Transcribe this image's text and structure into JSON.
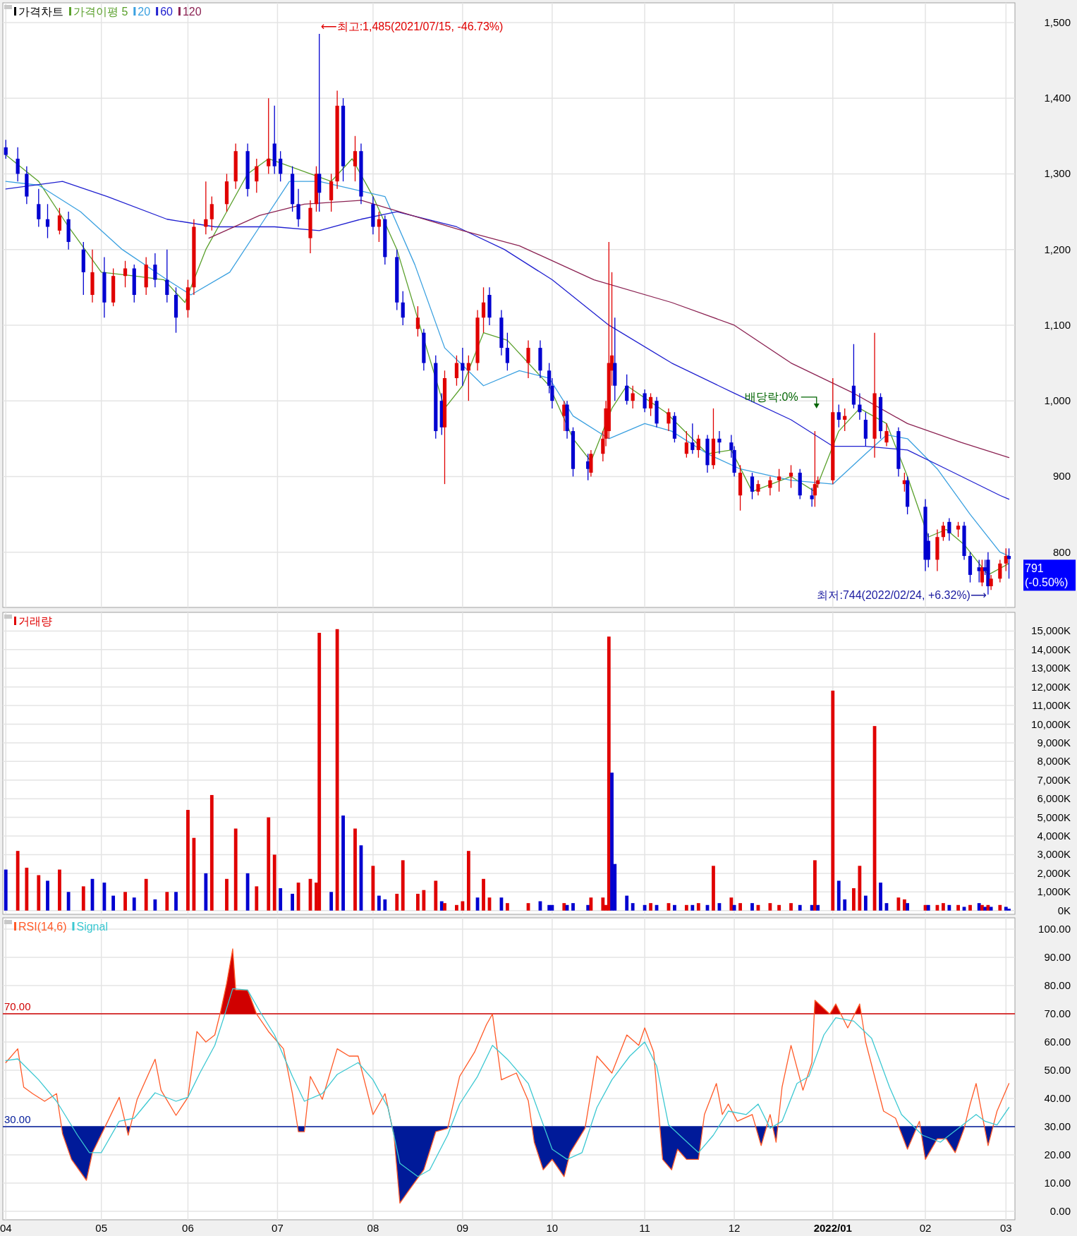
{
  "chart_data": [
    {
      "type": "candlestick",
      "title": "가격차트",
      "legend": "top left",
      "grid": true,
      "tick_labels": "y",
      "x": [
        "2021-04-01",
        "2021-04-05",
        "2021-04-08",
        "2021-04-12",
        "2021-04-15",
        "2021-04-19",
        "2021-04-22",
        "2021-04-27",
        "2021-04-30",
        "2021-05-04",
        "2021-05-07",
        "2021-05-11",
        "2021-05-14",
        "2021-05-18",
        "2021-05-21",
        "2021-05-25",
        "2021-05-28",
        "2021-06-01",
        "2021-06-03",
        "2021-06-07",
        "2021-06-09",
        "2021-06-14",
        "2021-06-17",
        "2021-06-21",
        "2021-06-24",
        "2021-06-28",
        "2021-06-30",
        "2021-07-02",
        "2021-07-06",
        "2021-07-08",
        "2021-07-12",
        "2021-07-14",
        "2021-07-15",
        "2021-07-19",
        "2021-07-21",
        "2021-07-23",
        "2021-07-27",
        "2021-07-29",
        "2021-08-02",
        "2021-08-04",
        "2021-08-06",
        "2021-08-10",
        "2021-08-12",
        "2021-08-17",
        "2021-08-19",
        "2021-08-23",
        "2021-08-25",
        "2021-08-26",
        "2021-08-30",
        "2021-09-01",
        "2021-09-03",
        "2021-09-06",
        "2021-09-08",
        "2021-09-10",
        "2021-09-14",
        "2021-09-16",
        "2021-09-23",
        "2021-09-27",
        "2021-09-30",
        "2021-10-01",
        "2021-10-05",
        "2021-10-06",
        "2021-10-08",
        "2021-10-13",
        "2021-10-14",
        "2021-10-18",
        "2021-10-19",
        "2021-10-20",
        "2021-10-21",
        "2021-10-22",
        "2021-10-26",
        "2021-10-28",
        "2021-11-01",
        "2021-11-03",
        "2021-11-05",
        "2021-11-09",
        "2021-11-11",
        "2021-11-15",
        "2021-11-17",
        "2021-11-19",
        "2021-11-22",
        "2021-11-24",
        "2021-11-26",
        "2021-11-30",
        "2021-12-01",
        "2021-12-03",
        "2021-12-07",
        "2021-12-09",
        "2021-12-13",
        "2021-12-16",
        "2021-12-20",
        "2021-12-23",
        "2021-12-27",
        "2021-12-28",
        "2021-12-29",
        "2022-01-03",
        "2022-01-05",
        "2022-01-07",
        "2022-01-10",
        "2022-01-12",
        "2022-01-14",
        "2022-01-17",
        "2022-01-19",
        "2022-01-21",
        "2022-01-25",
        "2022-01-27",
        "2022-01-28",
        "2022-02-03",
        "2022-02-04",
        "2022-02-07",
        "2022-02-09",
        "2022-02-11",
        "2022-02-14",
        "2022-02-16",
        "2022-02-18",
        "2022-02-21",
        "2022-02-22",
        "2022-02-23",
        "2022-02-24",
        "2022-02-25",
        "2022-02-28",
        "2022-03-02",
        "2022-03-03"
      ],
      "ohlc": [
        [
          1335,
          1345,
          1320,
          1325
        ],
        [
          1320,
          1335,
          1290,
          1300
        ],
        [
          1300,
          1310,
          1260,
          1270
        ],
        [
          1260,
          1280,
          1230,
          1240
        ],
        [
          1240,
          1260,
          1215,
          1230
        ],
        [
          1225,
          1255,
          1220,
          1245
        ],
        [
          1240,
          1250,
          1200,
          1210
        ],
        [
          1200,
          1210,
          1140,
          1170
        ],
        [
          1140,
          1200,
          1130,
          1170
        ],
        [
          1170,
          1190,
          1110,
          1130
        ],
        [
          1130,
          1175,
          1125,
          1165
        ],
        [
          1165,
          1185,
          1150,
          1175
        ],
        [
          1175,
          1180,
          1130,
          1140
        ],
        [
          1150,
          1190,
          1140,
          1180
        ],
        [
          1180,
          1195,
          1150,
          1160
        ],
        [
          1160,
          1200,
          1130,
          1140
        ],
        [
          1140,
          1150,
          1090,
          1110
        ],
        [
          1120,
          1160,
          1110,
          1150
        ],
        [
          1150,
          1240,
          1140,
          1230
        ],
        [
          1230,
          1290,
          1220,
          1240
        ],
        [
          1240,
          1270,
          1225,
          1260
        ],
        [
          1260,
          1300,
          1250,
          1290
        ],
        [
          1290,
          1340,
          1280,
          1330
        ],
        [
          1330,
          1340,
          1270,
          1280
        ],
        [
          1290,
          1320,
          1275,
          1310
        ],
        [
          1310,
          1400,
          1300,
          1320
        ],
        [
          1340,
          1390,
          1300,
          1310
        ],
        [
          1320,
          1330,
          1290,
          1300
        ],
        [
          1300,
          1310,
          1250,
          1260
        ],
        [
          1260,
          1280,
          1230,
          1240
        ],
        [
          1215,
          1265,
          1195,
          1255
        ],
        [
          1260,
          1310,
          1250,
          1300
        ],
        [
          1300,
          1485,
          1250,
          1275
        ],
        [
          1265,
          1300,
          1250,
          1290
        ],
        [
          1290,
          1410,
          1280,
          1390
        ],
        [
          1390,
          1400,
          1290,
          1310
        ],
        [
          1310,
          1350,
          1290,
          1330
        ],
        [
          1330,
          1340,
          1260,
          1270
        ],
        [
          1260,
          1270,
          1220,
          1230
        ],
        [
          1230,
          1250,
          1210,
          1240
        ],
        [
          1240,
          1245,
          1180,
          1190
        ],
        [
          1190,
          1200,
          1120,
          1130
        ],
        [
          1130,
          1145,
          1100,
          1110
        ],
        [
          1095,
          1125,
          1085,
          1110
        ],
        [
          1090,
          1095,
          1040,
          1050
        ],
        [
          1050,
          1060,
          950,
          960
        ],
        [
          1000,
          1010,
          955,
          965
        ],
        [
          965,
          1040,
          890,
          1030
        ],
        [
          1030,
          1060,
          1020,
          1050
        ],
        [
          1050,
          1070,
          1020,
          1040
        ],
        [
          1040,
          1060,
          1000,
          1050
        ],
        [
          1050,
          1120,
          1040,
          1110
        ],
        [
          1110,
          1150,
          1090,
          1130
        ],
        [
          1140,
          1150,
          1100,
          1110
        ],
        [
          1110,
          1120,
          1060,
          1070
        ],
        [
          1070,
          1090,
          1040,
          1050
        ],
        [
          1050,
          1080,
          1030,
          1070
        ],
        [
          1070,
          1080,
          1030,
          1040
        ],
        [
          1040,
          1050,
          1010,
          1020
        ],
        [
          1020,
          1030,
          990,
          1000
        ],
        [
          980,
          1000,
          960,
          995
        ],
        [
          995,
          1000,
          950,
          960
        ],
        [
          960,
          965,
          900,
          910
        ],
        [
          920,
          930,
          895,
          910
        ],
        [
          905,
          935,
          900,
          930
        ],
        [
          930,
          960,
          920,
          950
        ],
        [
          950,
          1000,
          940,
          990
        ],
        [
          960,
          1210,
          950,
          1050
        ],
        [
          1040,
          1170,
          1020,
          1060
        ],
        [
          1050,
          1110,
          1000,
          1020
        ],
        [
          1020,
          1035,
          995,
          1000
        ],
        [
          1000,
          1020,
          990,
          1010
        ],
        [
          1010,
          1015,
          985,
          990
        ],
        [
          990,
          1010,
          980,
          1005
        ],
        [
          1000,
          1005,
          965,
          970
        ],
        [
          970,
          990,
          960,
          985
        ],
        [
          980,
          985,
          945,
          950
        ],
        [
          930,
          960,
          925,
          945
        ],
        [
          945,
          970,
          930,
          935
        ],
        [
          935,
          955,
          925,
          950
        ],
        [
          950,
          955,
          905,
          915
        ],
        [
          915,
          990,
          910,
          950
        ],
        [
          950,
          960,
          930,
          945
        ],
        [
          945,
          955,
          925,
          935
        ],
        [
          935,
          940,
          900,
          905
        ],
        [
          875,
          915,
          855,
          905
        ],
        [
          900,
          905,
          870,
          880
        ],
        [
          880,
          895,
          875,
          890
        ],
        [
          885,
          900,
          875,
          895
        ],
        [
          895,
          910,
          880,
          900
        ],
        [
          900,
          915,
          885,
          905
        ],
        [
          905,
          910,
          870,
          875
        ],
        [
          875,
          885,
          860,
          870
        ],
        [
          875,
          960,
          860,
          890
        ],
        [
          890,
          900,
          885,
          895
        ],
        [
          895,
          1030,
          890,
          985
        ],
        [
          985,
          995,
          965,
          975
        ],
        [
          975,
          990,
          960,
          980
        ],
        [
          1020,
          1075,
          990,
          995
        ],
        [
          995,
          1010,
          975,
          985
        ],
        [
          975,
          985,
          940,
          950
        ],
        [
          950,
          1090,
          925,
          1010
        ],
        [
          1005,
          1010,
          950,
          960
        ],
        [
          945,
          970,
          940,
          960
        ],
        [
          960,
          965,
          900,
          910
        ],
        [
          890,
          905,
          880,
          895
        ],
        [
          895,
          900,
          850,
          860
        ],
        [
          860,
          870,
          775,
          790
        ],
        [
          815,
          825,
          780,
          790
        ],
        [
          790,
          830,
          775,
          820
        ],
        [
          820,
          840,
          815,
          835
        ],
        [
          840,
          845,
          815,
          825
        ],
        [
          830,
          840,
          820,
          835
        ],
        [
          835,
          840,
          790,
          795
        ],
        [
          795,
          800,
          760,
          770
        ],
        [
          780,
          790,
          760,
          775
        ],
        [
          760,
          790,
          755,
          780
        ],
        [
          780,
          790,
          770,
          775
        ],
        [
          790,
          800,
          744,
          755
        ],
        [
          755,
          770,
          750,
          765
        ],
        [
          765,
          790,
          760,
          785
        ],
        [
          785,
          805,
          775,
          795
        ],
        [
          795,
          805,
          765,
          791
        ]
      ],
      "series": [
        {
          "name": "가격이평 5",
          "type": "line",
          "color": "#5aa02c",
          "x": [
            "2021-04-01",
            "2021-04-12",
            "2021-04-22",
            "2021-05-03",
            "2021-05-14",
            "2021-05-24",
            "2021-05-31",
            "2021-06-07",
            "2021-06-14",
            "2021-06-21",
            "2021-06-28",
            "2021-07-05",
            "2021-07-19",
            "2021-07-26",
            "2021-08-02",
            "2021-08-10",
            "2021-08-26",
            "2021-09-01",
            "2021-09-08",
            "2021-09-16",
            "2021-09-30",
            "2021-10-08",
            "2021-10-14",
            "2021-10-21",
            "2021-10-26",
            "2021-11-08",
            "2021-11-22",
            "2021-11-30",
            "2021-12-07",
            "2021-12-20",
            "2021-12-28",
            "2022-01-05",
            "2022-01-12",
            "2022-01-21",
            "2022-01-28",
            "2022-02-04",
            "2022-02-10",
            "2022-02-16",
            "2022-02-24",
            "2022-03-03"
          ],
          "values": [
            1325,
            1290,
            1230,
            1170,
            1165,
            1160,
            1130,
            1200,
            1250,
            1300,
            1320,
            1310,
            1290,
            1320,
            1270,
            1200,
            990,
            1020,
            1090,
            1080,
            1020,
            950,
            920,
            990,
            1020,
            985,
            930,
            935,
            880,
            900,
            880,
            960,
            990,
            970,
            900,
            820,
            830,
            810,
            770,
            785
          ]
        },
        {
          "name": "20",
          "type": "line",
          "color": "#3aa0e0",
          "x": [
            "2021-04-01",
            "2021-04-12",
            "2021-04-26",
            "2021-05-10",
            "2021-05-25",
            "2021-06-02",
            "2021-06-15",
            "2021-06-25",
            "2021-07-05",
            "2021-07-15",
            "2021-07-26",
            "2021-08-06",
            "2021-08-16",
            "2021-08-26",
            "2021-09-08",
            "2021-09-20",
            "2021-09-30",
            "2021-10-08",
            "2021-10-20",
            "2021-11-01",
            "2021-11-10",
            "2021-11-22",
            "2021-12-03",
            "2021-12-20",
            "2022-01-03",
            "2022-01-14",
            "2022-01-21",
            "2022-01-28",
            "2022-02-07",
            "2022-02-18",
            "2022-02-28",
            "2022-03-03"
          ],
          "values": [
            1290,
            1285,
            1250,
            1200,
            1160,
            1140,
            1170,
            1230,
            1290,
            1290,
            1280,
            1270,
            1180,
            1070,
            1020,
            1040,
            1030,
            980,
            950,
            970,
            960,
            930,
            910,
            895,
            890,
            930,
            955,
            950,
            910,
            850,
            800,
            795
          ]
        },
        {
          "name": "60",
          "type": "line",
          "color": "#2020d0",
          "x": [
            "2021-04-01",
            "2021-04-20",
            "2021-05-05",
            "2021-05-25",
            "2021-06-10",
            "2021-06-30",
            "2021-07-15",
            "2021-07-29",
            "2021-08-10",
            "2021-08-30",
            "2021-09-15",
            "2021-10-01",
            "2021-10-20",
            "2021-11-10",
            "2021-12-01",
            "2021-12-20",
            "2022-01-03",
            "2022-01-14",
            "2022-01-28",
            "2022-02-10",
            "2022-02-28",
            "2022-03-03"
          ],
          "values": [
            1280,
            1290,
            1270,
            1240,
            1230,
            1230,
            1225,
            1240,
            1250,
            1230,
            1200,
            1160,
            1100,
            1050,
            1010,
            975,
            940,
            940,
            935,
            910,
            875,
            870
          ]
        },
        {
          "name": "120",
          "type": "line",
          "color": "#8b2252",
          "x": [
            "2021-06-08",
            "2021-06-25",
            "2021-07-10",
            "2021-07-29",
            "2021-08-15",
            "2021-09-01",
            "2021-09-20",
            "2021-10-15",
            "2021-11-10",
            "2021-12-01",
            "2021-12-20",
            "2022-01-10",
            "2022-01-28",
            "2022-02-15",
            "2022-03-03"
          ],
          "values": [
            1215,
            1245,
            1260,
            1265,
            1245,
            1225,
            1205,
            1160,
            1130,
            1100,
            1050,
            1010,
            970,
            945,
            925
          ]
        }
      ],
      "xlim": [
        "2021-03-31",
        "2022-03-05"
      ],
      "xticks": [
        {
          "value": "2021-04-01",
          "label": null
        },
        {
          "value": "2021-05-03",
          "label": null
        },
        {
          "value": "2021-06-01",
          "label": null
        },
        {
          "value": "2021-07-01",
          "label": null
        },
        {
          "value": "2021-08-02",
          "label": null
        },
        {
          "value": "2021-09-01",
          "label": null
        },
        {
          "value": "2021-10-01",
          "label": null
        },
        {
          "value": "2021-11-01",
          "label": null
        },
        {
          "value": "2021-12-01",
          "label": null
        },
        {
          "value": "2022-01-03",
          "label": null
        },
        {
          "value": "2022-02-03",
          "label": null
        },
        {
          "value": "2022-03-02",
          "label": null
        }
      ],
      "ylim": [
        727,
        1526
      ],
      "yticks": [
        {
          "value": 800,
          "label": "800"
        },
        {
          "value": 900,
          "label": "900"
        },
        {
          "value": 1000,
          "label": "1,000"
        },
        {
          "value": 1100,
          "label": "1,100"
        },
        {
          "value": 1200,
          "label": "1,200"
        },
        {
          "value": 1300,
          "label": "1,300"
        },
        {
          "value": 1400,
          "label": "1,400"
        },
        {
          "value": 1500,
          "label": "1,500"
        }
      ],
      "annotations": [
        "⟵최고:1,485(2021/07/15, -46.73%)",
        "최저:744(2022/02/24, +6.32%)⟶",
        "배당락:0%",
        "791 (-0.50%)"
      ]
    },
    {
      "type": "bar",
      "title": "거래량",
      "grid": true,
      "tick_labels": "y",
      "x": [
        "2021-04-01",
        "2021-04-05",
        "2021-04-08",
        "2021-04-12",
        "2021-04-15",
        "2021-04-19",
        "2021-04-22",
        "2021-04-27",
        "2021-04-30",
        "2021-05-04",
        "2021-05-07",
        "2021-05-11",
        "2021-05-14",
        "2021-05-18",
        "2021-05-21",
        "2021-05-25",
        "2021-05-28",
        "2021-06-01",
        "2021-06-03",
        "2021-06-07",
        "2021-06-09",
        "2021-06-14",
        "2021-06-17",
        "2021-06-21",
        "2021-06-24",
        "2021-06-28",
        "2021-06-30",
        "2021-07-02",
        "2021-07-06",
        "2021-07-08",
        "2021-07-12",
        "2021-07-14",
        "2021-07-15",
        "2021-07-19",
        "2021-07-21",
        "2021-07-23",
        "2021-07-27",
        "2021-07-29",
        "2021-08-02",
        "2021-08-04",
        "2021-08-06",
        "2021-08-10",
        "2021-08-12",
        "2021-08-17",
        "2021-08-19",
        "2021-08-23",
        "2021-08-25",
        "2021-08-26",
        "2021-08-30",
        "2021-09-01",
        "2021-09-03",
        "2021-09-06",
        "2021-09-08",
        "2021-09-10",
        "2021-09-14",
        "2021-09-16",
        "2021-09-23",
        "2021-09-27",
        "2021-09-30",
        "2021-10-01",
        "2021-10-05",
        "2021-10-06",
        "2021-10-08",
        "2021-10-13",
        "2021-10-14",
        "2021-10-18",
        "2021-10-19",
        "2021-10-20",
        "2021-10-21",
        "2021-10-22",
        "2021-10-26",
        "2021-10-28",
        "2021-11-01",
        "2021-11-03",
        "2021-11-05",
        "2021-11-09",
        "2021-11-11",
        "2021-11-15",
        "2021-11-17",
        "2021-11-19",
        "2021-11-22",
        "2021-11-24",
        "2021-11-26",
        "2021-11-30",
        "2021-12-01",
        "2021-12-03",
        "2021-12-07",
        "2021-12-09",
        "2021-12-13",
        "2021-12-16",
        "2021-12-20",
        "2021-12-23",
        "2021-12-27",
        "2021-12-28",
        "2021-12-29",
        "2022-01-03",
        "2022-01-05",
        "2022-01-07",
        "2022-01-10",
        "2022-01-12",
        "2022-01-14",
        "2022-01-17",
        "2022-01-19",
        "2022-01-21",
        "2022-01-25",
        "2022-01-27",
        "2022-01-28",
        "2022-02-03",
        "2022-02-04",
        "2022-02-07",
        "2022-02-09",
        "2022-02-11",
        "2022-02-14",
        "2022-02-16",
        "2022-02-18",
        "2022-02-21",
        "2022-02-22",
        "2022-02-23",
        "2022-02-24",
        "2022-02-25",
        "2022-02-28",
        "2022-03-02",
        "2022-03-03"
      ],
      "values": [
        2200,
        3200,
        2300,
        1900,
        1600,
        2200,
        1000,
        1300,
        1700,
        1500,
        800,
        1000,
        700,
        1700,
        600,
        1000,
        1000,
        5400,
        3900,
        2000,
        6200,
        1700,
        4400,
        2000,
        1300,
        5000,
        3000,
        1200,
        900,
        1500,
        1700,
        1500,
        14900,
        1000,
        15100,
        5100,
        4400,
        3500,
        2400,
        800,
        600,
        900,
        2700,
        900,
        1100,
        1600,
        500,
        400,
        300,
        500,
        3200,
        700,
        1700,
        700,
        700,
        400,
        400,
        500,
        300,
        300,
        400,
        300,
        400,
        300,
        700,
        700,
        300,
        14700,
        7400,
        2500,
        800,
        400,
        300,
        400,
        300,
        400,
        300,
        300,
        300,
        400,
        300,
        2400,
        400,
        700,
        300,
        400,
        400,
        300,
        400,
        300,
        400,
        300,
        300,
        2700,
        300,
        11800,
        1600,
        600,
        1200,
        2400,
        800,
        9900,
        1500,
        400,
        700,
        600,
        400,
        300,
        300,
        300,
        400,
        300,
        300,
        200,
        300,
        400,
        300,
        200,
        300,
        200,
        300,
        200,
        100
      ],
      "colors": [
        "#0000d0",
        "#e00000",
        "#e00000",
        "#e00000",
        "#0000d0",
        "#e00000",
        "#0000d0",
        "#e00000",
        "#0000d0",
        "#0000d0",
        "#0000d0",
        "#e00000",
        "#0000d0",
        "#e00000",
        "#0000d0",
        "#e00000",
        "#0000d0",
        "#e00000",
        "#e00000",
        "#0000d0",
        "#e00000",
        "#e00000",
        "#e00000",
        "#0000d0",
        "#e00000",
        "#e00000",
        "#e00000",
        "#0000d0",
        "#0000d0",
        "#e00000",
        "#e00000",
        "#e00000",
        "#e00000",
        "#0000d0",
        "#e00000",
        "#0000d0",
        "#e00000",
        "#0000d0",
        "#e00000",
        "#0000d0",
        "#0000d0",
        "#e00000",
        "#e00000",
        "#e00000",
        "#e00000",
        "#e00000",
        "#0000d0",
        "#e00000",
        "#e00000",
        "#e00000",
        "#e00000",
        "#0000d0",
        "#e00000",
        "#e00000",
        "#0000d0",
        "#e00000",
        "#e00000",
        "#0000d0",
        "#0000d0",
        "#0000d0",
        "#e00000",
        "#0000d0",
        "#0000d0",
        "#0000d0",
        "#e00000",
        "#e00000",
        "#e00000",
        "#e00000",
        "#0000d0",
        "#0000d0",
        "#0000d0",
        "#0000d0",
        "#0000d0",
        "#e00000",
        "#0000d0",
        "#e00000",
        "#0000d0",
        "#e00000",
        "#0000d0",
        "#e00000",
        "#0000d0",
        "#e00000",
        "#0000d0",
        "#e00000",
        "#0000d0",
        "#e00000",
        "#0000d0",
        "#e00000",
        "#e00000",
        "#e00000",
        "#e00000",
        "#0000d0",
        "#0000d0",
        "#e00000",
        "#0000d0",
        "#e00000",
        "#0000d0",
        "#0000d0",
        "#e00000",
        "#e00000",
        "#0000d0",
        "#e00000",
        "#0000d0",
        "#0000d0",
        "#e00000",
        "#e00000",
        "#0000d0",
        "#e00000",
        "#0000d0",
        "#e00000",
        "#e00000",
        "#0000d0",
        "#e00000",
        "#0000d0",
        "#e00000",
        "#0000d0",
        "#e00000",
        "#0000d0",
        "#e00000",
        "#0000d0",
        "#e00000",
        "#0000d0",
        "#0000d0"
      ],
      "xlim": [
        "2021-03-31",
        "2022-03-05"
      ],
      "xticks": [
        {
          "value": "2021-04-01",
          "label": null
        },
        {
          "value": "2021-05-03",
          "label": null
        },
        {
          "value": "2021-06-01",
          "label": null
        },
        {
          "value": "2021-07-01",
          "label": null
        },
        {
          "value": "2021-08-02",
          "label": null
        },
        {
          "value": "2021-09-01",
          "label": null
        },
        {
          "value": "2021-10-01",
          "label": null
        },
        {
          "value": "2021-11-01",
          "label": null
        },
        {
          "value": "2021-12-01",
          "label": null
        },
        {
          "value": "2022-01-03",
          "label": null
        },
        {
          "value": "2022-02-03",
          "label": null
        },
        {
          "value": "2022-03-02",
          "label": null
        }
      ],
      "ylim": [
        -200,
        16000
      ],
      "yticks": [
        {
          "value": 0,
          "label": "0K"
        },
        {
          "value": 1000,
          "label": "1,000K"
        },
        {
          "value": 2000,
          "label": "2,000K"
        },
        {
          "value": 3000,
          "label": "3,000K"
        },
        {
          "value": 4000,
          "label": "4,000K"
        },
        {
          "value": 5000,
          "label": "5,000K"
        },
        {
          "value": 6000,
          "label": "6,000K"
        },
        {
          "value": 7000,
          "label": "7,000K"
        },
        {
          "value": 8000,
          "label": "8,000K"
        },
        {
          "value": 9000,
          "label": "9,000K"
        },
        {
          "value": 10000,
          "label": "10,000K"
        },
        {
          "value": 11000,
          "label": "11,000K"
        },
        {
          "value": 12000,
          "label": "12,000K"
        },
        {
          "value": 13000,
          "label": "13,000K"
        },
        {
          "value": 14000,
          "label": "14,000K"
        },
        {
          "value": 15000,
          "label": "15,000K"
        }
      ]
    },
    {
      "type": "line",
      "legend": "top left",
      "grid": true,
      "series": [
        {
          "name": "RSI(14,6)",
          "color": "#ff5a28",
          "x": [
            "2021-04-01",
            "2021-04-05",
            "2021-04-07",
            "2021-04-10",
            "2021-04-14",
            "2021-04-18",
            "2021-04-20",
            "2021-04-23",
            "2021-04-28",
            "2021-04-30",
            "2021-05-04",
            "2021-05-09",
            "2021-05-12",
            "2021-05-15",
            "2021-05-21",
            "2021-05-23",
            "2021-05-28",
            "2021-06-01",
            "2021-06-04",
            "2021-06-07",
            "2021-06-10",
            "2021-06-12",
            "2021-06-14",
            "2021-06-16",
            "2021-06-17",
            "2021-06-21",
            "2021-06-24",
            "2021-06-28",
            "2021-07-03",
            "2021-07-06",
            "2021-07-08",
            "2021-07-10",
            "2021-07-12",
            "2021-07-16",
            "2021-07-21",
            "2021-07-25",
            "2021-07-28",
            "2021-08-02",
            "2021-08-06",
            "2021-08-09",
            "2021-08-11",
            "2021-08-14",
            "2021-08-19",
            "2021-08-23",
            "2021-08-27",
            "2021-08-31",
            "2021-09-05",
            "2021-09-09",
            "2021-09-11",
            "2021-09-14",
            "2021-09-19",
            "2021-09-23",
            "2021-09-25",
            "2021-09-28",
            "2021-10-01",
            "2021-10-05",
            "2021-10-07",
            "2021-10-12",
            "2021-10-16",
            "2021-10-21",
            "2021-10-26",
            "2021-10-30",
            "2021-11-01",
            "2021-11-04",
            "2021-11-07",
            "2021-11-10",
            "2021-11-12",
            "2021-11-15",
            "2021-11-19",
            "2021-11-21",
            "2021-11-25",
            "2021-11-27",
            "2021-11-29",
            "2021-12-02",
            "2021-12-07",
            "2021-12-10",
            "2021-12-13",
            "2021-12-15",
            "2021-12-17",
            "2021-12-20",
            "2021-12-24",
            "2021-12-27",
            "2021-12-28",
            "2022-01-02",
            "2022-01-04",
            "2022-01-08",
            "2022-01-12",
            "2022-01-14",
            "2022-01-17",
            "2022-01-20",
            "2022-01-24",
            "2022-01-28",
            "2022-02-01",
            "2022-02-03",
            "2022-02-07",
            "2022-02-10",
            "2022-02-13",
            "2022-02-16",
            "2022-02-18",
            "2022-02-20",
            "2022-02-24",
            "2022-02-27",
            "2022-03-03"
          ],
          "values": [
            52.7,
            57.6,
            44,
            41.7,
            39,
            41.7,
            27.5,
            18.4,
            11,
            20.8,
            29.4,
            40.4,
            27,
            39.7,
            53.9,
            42.9,
            34,
            40.4,
            63.7,
            60,
            62.5,
            71,
            80.9,
            93,
            78.4,
            78.4,
            69.9,
            63.7,
            57.6,
            41.7,
            28.2,
            28.2,
            47.8,
            39.7,
            57.6,
            55,
            55,
            34.3,
            41.7,
            27,
            2.9,
            7.4,
            14.7,
            28.2,
            29.4,
            47.8,
            56.4,
            66.2,
            69.9,
            46.6,
            49,
            39.2,
            24.5,
            14.7,
            18.4,
            12.3,
            20.8,
            29.4,
            55,
            49,
            62.5,
            58.8,
            65,
            56.4,
            18.4,
            14.7,
            22,
            18.4,
            18.4,
            34.3,
            45.3,
            34.3,
            38,
            31.9,
            34.3,
            23.3,
            34.3,
            24.5,
            44,
            58.8,
            42.9,
            52.7,
            74.8,
            69.9,
            73.5,
            65,
            73.5,
            60,
            47.8,
            35.5,
            33,
            22,
            31.9,
            18.4,
            25.7,
            25.7,
            20.8,
            29.4,
            38,
            45.3,
            23.3,
            35.5,
            45.3
          ]
        },
        {
          "name": "Signal",
          "color": "#3cc8d2",
          "x": [
            "2021-04-01",
            "2021-04-05",
            "2021-04-12",
            "2021-04-18",
            "2021-04-25",
            "2021-04-29",
            "2021-05-03",
            "2021-05-09",
            "2021-05-14",
            "2021-05-21",
            "2021-05-28",
            "2021-06-01",
            "2021-06-05",
            "2021-06-10",
            "2021-06-13",
            "2021-06-16",
            "2021-06-21",
            "2021-06-25",
            "2021-06-30",
            "2021-07-06",
            "2021-07-10",
            "2021-07-16",
            "2021-07-21",
            "2021-07-28",
            "2021-08-02",
            "2021-08-07",
            "2021-08-11",
            "2021-08-17",
            "2021-08-21",
            "2021-08-27",
            "2021-08-31",
            "2021-09-06",
            "2021-09-11",
            "2021-09-16",
            "2021-09-23",
            "2021-10-01",
            "2021-10-06",
            "2021-10-11",
            "2021-10-16",
            "2021-10-21",
            "2021-10-27",
            "2021-11-01",
            "2021-11-05",
            "2021-11-09",
            "2021-11-14",
            "2021-11-19",
            "2021-11-24",
            "2021-11-29",
            "2021-12-05",
            "2021-12-09",
            "2021-12-13",
            "2021-12-17",
            "2021-12-22",
            "2021-12-26",
            "2021-12-31",
            "2022-01-04",
            "2022-01-10",
            "2022-01-16",
            "2022-01-22",
            "2022-01-26",
            "2022-02-02",
            "2022-02-08",
            "2022-02-14",
            "2022-02-20",
            "2022-02-23",
            "2022-02-27",
            "2022-03-03"
          ],
          "values": [
            53.4,
            54,
            46.6,
            39,
            27,
            20.8,
            20.8,
            31.9,
            33,
            42,
            39,
            40.4,
            49,
            58.8,
            68.6,
            78.9,
            78.4,
            71,
            62.5,
            47.8,
            39,
            41.7,
            48.5,
            52.7,
            46.6,
            36.8,
            17,
            12.3,
            14.7,
            27,
            38,
            47.8,
            58.8,
            53.9,
            45.3,
            22,
            18.4,
            20.8,
            36.8,
            46.6,
            55,
            60,
            51.5,
            30.6,
            25.7,
            20.8,
            27,
            35.5,
            34.3,
            38,
            29.4,
            31.9,
            45.3,
            47.8,
            62.5,
            68.6,
            67.4,
            61.3,
            44,
            34.3,
            27,
            24.5,
            29.4,
            34.3,
            31.9,
            30.6,
            36.8
          ]
        }
      ],
      "ref_lines": [
        {
          "axis": "y",
          "value": 70,
          "label": "70.00",
          "color": "#d00000"
        },
        {
          "axis": "y",
          "value": 30,
          "label": "30.00",
          "color": "#001a99"
        }
      ],
      "xlim": [
        "2021-03-31",
        "2022-03-05"
      ],
      "xticks": [
        {
          "value": "2021-04-01",
          "label": "04"
        },
        {
          "value": "2021-05-03",
          "label": "05"
        },
        {
          "value": "2021-06-01",
          "label": "06"
        },
        {
          "value": "2021-07-01",
          "label": "07"
        },
        {
          "value": "2021-08-02",
          "label": "08"
        },
        {
          "value": "2021-09-01",
          "label": "09"
        },
        {
          "value": "2021-10-01",
          "label": "10"
        },
        {
          "value": "2021-11-01",
          "label": "11"
        },
        {
          "value": "2021-12-01",
          "label": "12"
        },
        {
          "value": "2022-01-03",
          "label": "2022/01"
        },
        {
          "value": "2022-02-03",
          "label": "02"
        },
        {
          "value": "2022-03-02",
          "label": "03"
        }
      ],
      "ylim": [
        -3,
        104
      ],
      "yticks": [
        {
          "value": 0,
          "label": "0.00"
        },
        {
          "value": 10,
          "label": "10.00"
        },
        {
          "value": 20,
          "label": "20.00"
        },
        {
          "value": 30,
          "label": "30.00"
        },
        {
          "value": 40,
          "label": "40.00"
        },
        {
          "value": 50,
          "label": "50.00"
        },
        {
          "value": 60,
          "label": "60.00"
        },
        {
          "value": 70,
          "label": "70.00"
        },
        {
          "value": 80,
          "label": "80.00"
        },
        {
          "value": 90,
          "label": "90.00"
        },
        {
          "value": 100,
          "label": "100.00"
        }
      ]
    }
  ]
}
